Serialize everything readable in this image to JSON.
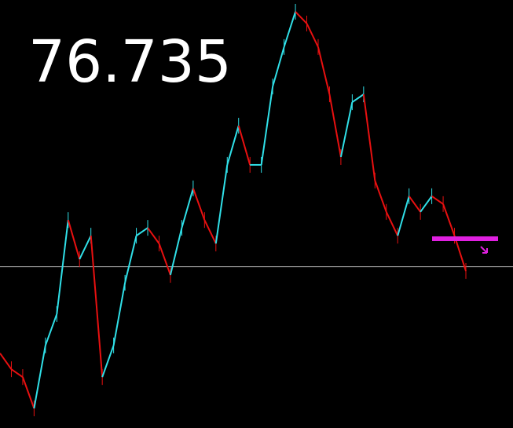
{
  "chart_data": {
    "type": "line",
    "current_price": 76.735,
    "level": 76.828,
    "level_color": "#e020e0",
    "up_color": "#30e0e8",
    "down_color": "#e81010",
    "price_line_color": "#b0b0b0",
    "ylim": [
      76.2,
      77.62
    ],
    "values": [
      76.448,
      76.395,
      76.369,
      76.265,
      76.474,
      76.578,
      76.89,
      76.76,
      76.838,
      76.369,
      76.474,
      76.682,
      76.838,
      76.864,
      76.812,
      76.708,
      76.864,
      76.995,
      76.89,
      76.812,
      77.073,
      77.203,
      77.073,
      77.073,
      77.333,
      77.464,
      77.581,
      77.542,
      77.464,
      77.307,
      77.099,
      77.281,
      77.307,
      77.021,
      76.917,
      76.838,
      76.969,
      76.917,
      76.969,
      76.943,
      76.838,
      76.721
    ]
  }
}
